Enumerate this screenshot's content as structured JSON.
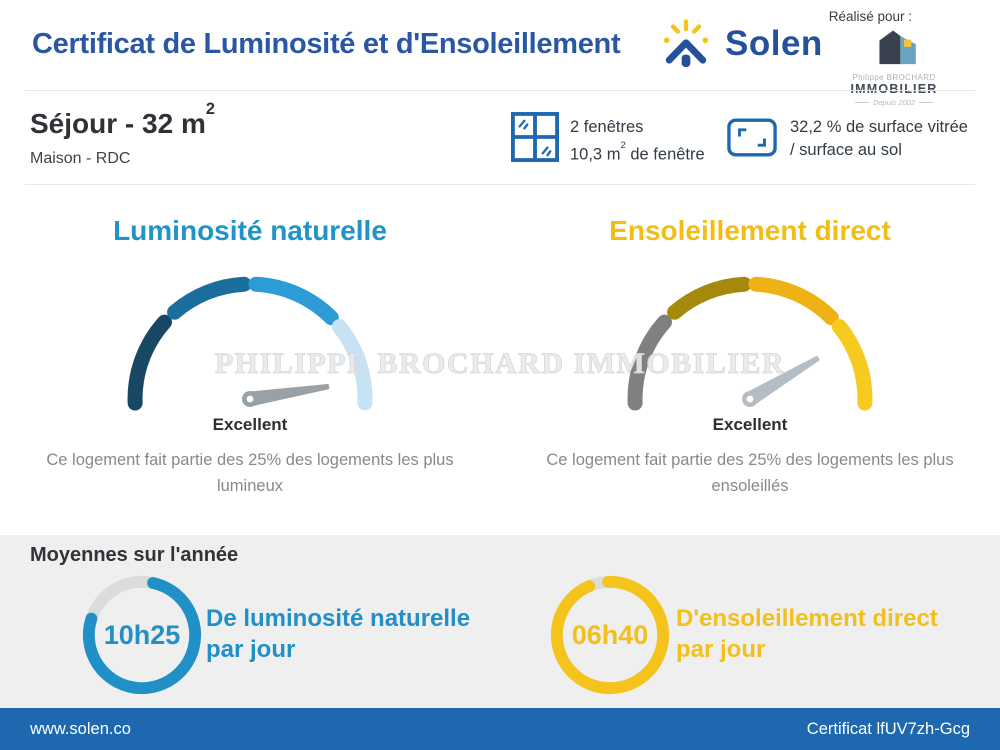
{
  "header": {
    "title": "Certificat de Luminosité et d'Ensoleillement",
    "brand": "Solen",
    "made_for": "Réalisé pour :",
    "agency": {
      "name_top": "Philippe BROCHARD",
      "name_main": "IMMOBILIER",
      "tagline": "Depuis 2002"
    }
  },
  "room": {
    "title_main": "Séjour - 32 m",
    "title_sup": "2",
    "subtitle": "Maison - RDC",
    "windows_line1": "2 fenêtres",
    "windows_line2_pre": "10,3 m",
    "windows_line2_sup": "2",
    "windows_line2_post": " de fenêtre",
    "glazing_line1": "32,2 % de surface vitrée",
    "glazing_line2": "/ surface au sol"
  },
  "gauges": [
    {
      "title": "Luminosité naturelle",
      "title_color": "#2093c8",
      "rating": "Excellent",
      "description": "Ce logement fait partie des 25% des logements les plus lumineux",
      "segment_colors": [
        "#174763",
        "#1b6d9b",
        "#2d9bd5",
        "#c6e2f4"
      ],
      "needle_angle_deg": -9,
      "needle_color": "#99a1a7"
    },
    {
      "title": "Ensoleillement direct",
      "title_color": "#f2bd15",
      "rating": "Excellent",
      "description": "Ce logement fait partie des 25% des logements les plus ensoleillés",
      "segment_colors": [
        "#7f8081",
        "#a4890b",
        "#eeb214",
        "#f6ca1e"
      ],
      "needle_angle_deg": -31,
      "needle_color": "#b4bdc5"
    }
  ],
  "watermark": "PHILIPPE BROCHARD IMMOBILIER",
  "averages": {
    "title": "Moyennes sur l'année",
    "items": [
      {
        "value": "10h25",
        "label": "De luminosité naturelle",
        "label2": "par jour",
        "color": "#2090c6",
        "ring": {
          "color": "#2090c6",
          "track_color": "#dbdcde",
          "start_deg": 78,
          "sweep_deg": 276
        }
      },
      {
        "value": "06h40",
        "label": "D'ensoleillement direct",
        "label2": "par jour",
        "color": "#f2c01c",
        "ring": {
          "color": "#f5c41c",
          "track_color": "#dbdcde",
          "start_deg": 92,
          "sweep_deg": 339
        }
      }
    ]
  },
  "footer": {
    "website": "www.solen.co",
    "certificate": "Certificat lfUV7zh-Gcg"
  },
  "colors": {
    "title_blue": "#2a57a5",
    "solen_navy": "#24509c",
    "sun_yellow": "#f5c41c",
    "icon_blue": "#1e68b0",
    "footer_blue": "#1e68b0",
    "section_bg": "#efeff0",
    "agency_dark": "#39404f",
    "agency_light": "#6aa3c2",
    "agency_yellow": "#eec73e"
  },
  "chart_data": [
    {
      "type": "gauge",
      "title": "Luminosité naturelle",
      "rating": "Excellent",
      "segments": 4,
      "needle_angle_deg_above_horizontal_right": 9,
      "note": "needle near maximum (right end of 4-segment half-dial)"
    },
    {
      "type": "gauge",
      "title": "Ensoleillement direct",
      "rating": "Excellent",
      "segments": 4,
      "needle_angle_deg_above_horizontal_right": 31,
      "note": "needle in upper range of 4-segment half-dial"
    },
    {
      "type": "pie",
      "title": "De luminosité naturelle par jour",
      "value": "10h25",
      "fill_fraction": 0.77
    },
    {
      "type": "pie",
      "title": "D'ensoleillement direct par jour",
      "value": "06h40",
      "fill_fraction": 0.94
    }
  ]
}
